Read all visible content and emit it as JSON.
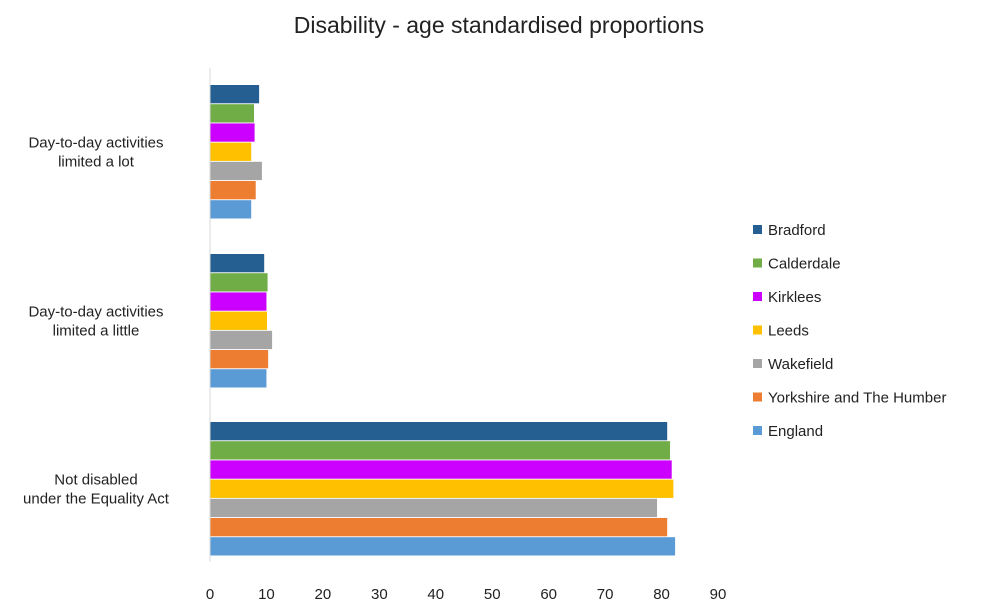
{
  "chart_data": {
    "type": "bar",
    "orientation": "horizontal",
    "title": "Disability - age standardised proportions",
    "xlabel": "",
    "ylabel": "",
    "xlim": [
      0,
      90
    ],
    "xticks": [
      0,
      10,
      20,
      30,
      40,
      50,
      60,
      70,
      80,
      90
    ],
    "grid": false,
    "legend_position": "right",
    "categories": [
      [
        "Day-to-day activities",
        "limited a lot"
      ],
      [
        "Day-to-day activities",
        "limited a little"
      ],
      [
        "Not disabled",
        "under the Equality Act"
      ]
    ],
    "series": [
      {
        "name": "Bradford",
        "color": "#255E91",
        "values": [
          8.7,
          9.6,
          81.0
        ]
      },
      {
        "name": "Calderdale",
        "color": "#70AD47",
        "values": [
          7.8,
          10.2,
          81.5
        ]
      },
      {
        "name": "Kirklees",
        "color": "#CC00FF",
        "values": [
          7.9,
          10.0,
          81.8
        ]
      },
      {
        "name": "Leeds",
        "color": "#FFC000",
        "values": [
          7.3,
          10.1,
          82.1
        ]
      },
      {
        "name": "Wakefield",
        "color": "#A5A5A5",
        "values": [
          9.2,
          11.0,
          79.2
        ]
      },
      {
        "name": "Yorkshire and The Humber",
        "color": "#ED7D31",
        "values": [
          8.1,
          10.3,
          81.0
        ]
      },
      {
        "name": "England",
        "color": "#5B9BD5",
        "values": [
          7.3,
          10.0,
          82.4
        ]
      }
    ]
  }
}
